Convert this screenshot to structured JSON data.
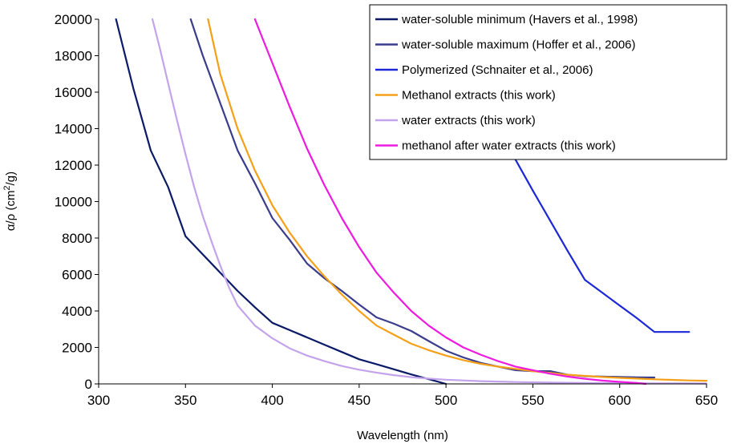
{
  "chart_data": {
    "type": "line",
    "title": "",
    "xlabel": "Wavelength (nm)",
    "ylabel_parts": {
      "pre": "α/ρ (cm",
      "sup": "2",
      "post": "/g)"
    },
    "xlim": [
      300,
      650
    ],
    "ylim": [
      0,
      20000
    ],
    "xticks": [
      "300",
      "350",
      "400",
      "450",
      "500",
      "550",
      "600",
      "650"
    ],
    "yticks": [
      "0",
      "2000",
      "4000",
      "6000",
      "8000",
      "10000",
      "12000",
      "14000",
      "16000",
      "18000",
      "20000"
    ],
    "grid": false,
    "legend_position": "top-right",
    "series": [
      {
        "name": "water-soluble minimum (Havers et al., 1998)",
        "color": "#0a1a66",
        "x": [
          310,
          320,
          330,
          340,
          350,
          360,
          370,
          380,
          390,
          400,
          410,
          420,
          430,
          440,
          450,
          460,
          470,
          480,
          490,
          500
        ],
        "y": [
          20000,
          16200,
          12800,
          10800,
          8100,
          7100,
          6100,
          5100,
          4200,
          3350,
          2950,
          2550,
          2150,
          1750,
          1350,
          1080,
          800,
          520,
          260,
          0
        ]
      },
      {
        "name": "water-soluble maximum (Hoffer et al., 2006)",
        "color": "#3a3d8c",
        "x": [
          353,
          360,
          370,
          380,
          390,
          400,
          410,
          420,
          430,
          440,
          450,
          460,
          470,
          480,
          490,
          500,
          510,
          520,
          530,
          540,
          550,
          560,
          570,
          580,
          590,
          600,
          610,
          620
        ],
        "y": [
          20000,
          18000,
          15400,
          12800,
          11000,
          9100,
          7900,
          6600,
          5800,
          5100,
          4350,
          3650,
          3300,
          2900,
          2350,
          1820,
          1450,
          1150,
          950,
          750,
          700,
          700,
          500,
          420,
          400,
          380,
          360,
          350
        ]
      },
      {
        "name": "Polymerized (Schnaiter et al., 2006)",
        "color": "#1c28d8",
        "x": [
          540,
          550,
          560,
          570,
          580,
          590,
          600,
          610,
          620,
          640
        ],
        "y": [
          12300,
          10600,
          8950,
          7300,
          5700,
          5000,
          4300,
          3600,
          2850,
          2850
        ]
      },
      {
        "name": "Methanol extracts (this work)",
        "color": "#f5a018",
        "x": [
          363,
          370,
          380,
          390,
          400,
          410,
          420,
          430,
          440,
          450,
          460,
          470,
          480,
          490,
          500,
          510,
          520,
          530,
          540,
          550,
          560,
          570,
          580,
          590,
          600,
          610,
          620,
          630,
          640,
          650
        ],
        "y": [
          20000,
          17000,
          14000,
          11700,
          9800,
          8300,
          7000,
          5900,
          4900,
          4000,
          3200,
          2700,
          2200,
          1850,
          1550,
          1300,
          1100,
          950,
          820,
          700,
          600,
          500,
          440,
          380,
          330,
          290,
          250,
          220,
          190,
          170
        ]
      },
      {
        "name": "water extracts (this work)",
        "color": "#c3a3ec",
        "x": [
          331,
          335,
          340,
          345,
          350,
          355,
          360,
          365,
          370,
          375,
          380,
          390,
          400,
          410,
          420,
          430,
          440,
          450,
          460,
          470,
          480,
          490,
          500,
          520,
          540,
          560,
          580,
          600,
          620,
          640,
          650
        ],
        "y": [
          20000,
          18500,
          16500,
          14500,
          12600,
          10800,
          9200,
          7800,
          6500,
          5300,
          4300,
          3200,
          2500,
          1950,
          1550,
          1250,
          980,
          780,
          620,
          480,
          370,
          290,
          230,
          150,
          100,
          70,
          50,
          40,
          30,
          25,
          20
        ]
      },
      {
        "name": "methanol after water extracts (this work)",
        "color": "#ee1ae0",
        "x": [
          390,
          400,
          410,
          420,
          430,
          440,
          450,
          460,
          470,
          480,
          490,
          500,
          510,
          520,
          530,
          540,
          550,
          560,
          570,
          580,
          590,
          600,
          610,
          615
        ],
        "y": [
          20000,
          17600,
          15200,
          12900,
          10900,
          9100,
          7500,
          6100,
          5000,
          4000,
          3200,
          2550,
          2000,
          1600,
          1250,
          950,
          750,
          560,
          400,
          280,
          180,
          110,
          50,
          0
        ]
      }
    ]
  }
}
